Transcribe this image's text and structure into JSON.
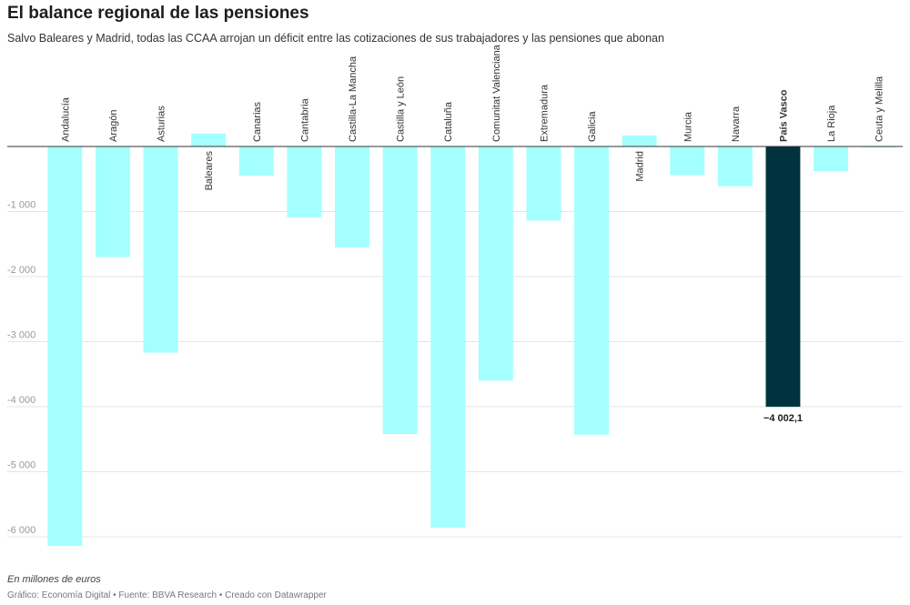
{
  "header": {
    "title": "El balance regional de las pensiones",
    "subtitle": "Salvo Baleares y Madrid, todas las CCAA arrojan un déficit entre las cotizaciones de sus trabajadores y las pensiones que abonan"
  },
  "footer": {
    "note": "En millones de euros",
    "credits": "Gráfico: Economía Digital • Fuente: BBVA Research • Creado con Datawrapper"
  },
  "colors": {
    "default_bar": "#a4ffff",
    "highlight_bar": "#00333d",
    "grid": "#e5e5e5",
    "axis": "#333333",
    "tick_label": "#999999"
  },
  "chart_data": {
    "type": "bar",
    "categories": [
      "Andalucía",
      "Aragón",
      "Asturias",
      "Baleares",
      "Canarias",
      "Cantabria",
      "Castilla-La Mancha",
      "Castilla y León",
      "Cataluña",
      "Comunitat Valenciana",
      "Extremadura",
      "Galicia",
      "Madrid",
      "Murcia",
      "Navarra",
      "País Vasco",
      "La Rioja",
      "Ceuta y Melilla"
    ],
    "values": [
      -6140,
      -1700,
      -3170,
      200,
      -450,
      -1090,
      -1550,
      -4420,
      -5860,
      -3600,
      -1140,
      -4430,
      170,
      -440,
      -610,
      -4002.1,
      -380,
      -15
    ],
    "highlight": "País Vasco",
    "highlight_label": "−4 002,1",
    "y_ticks": [
      0,
      -1000,
      -2000,
      -3000,
      -4000,
      -5000,
      -6000
    ],
    "y_tick_labels": [
      "",
      "-1 000",
      "-2 000",
      "-3 000",
      "-4 000",
      "-5 000",
      "-6 000"
    ],
    "ylim": [
      -6250,
      0
    ],
    "grid": true,
    "legend": "none"
  }
}
